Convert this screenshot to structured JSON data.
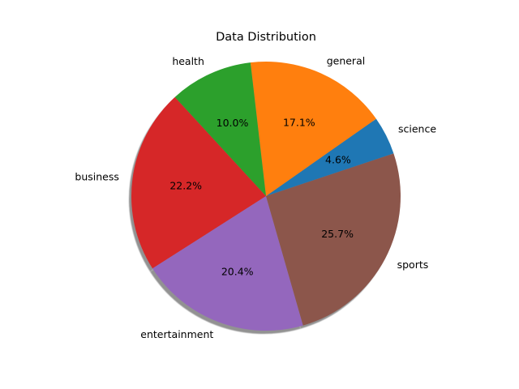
{
  "chart_data": {
    "type": "pie",
    "title": "Data Distribution",
    "shadow": true,
    "start_angle_deg": 90,
    "direction": "counterclockwise",
    "slices": [
      {
        "label": "science",
        "value": 4.6,
        "value_label": "4.6%",
        "color": "#1f77b4"
      },
      {
        "label": "general",
        "value": 17.1,
        "value_label": "17.1%",
        "color": "#ff7f0e"
      },
      {
        "label": "health",
        "value": 10.0,
        "value_label": "10.0%",
        "color": "#2ca02c"
      },
      {
        "label": "business",
        "value": 22.2,
        "value_label": "22.2%",
        "color": "#d62728"
      },
      {
        "label": "entertainment",
        "value": 20.4,
        "value_label": "20.4%",
        "color": "#9467bd"
      },
      {
        "label": "sports",
        "value": 25.7,
        "value_label": "25.7%",
        "color": "#8c564b"
      }
    ]
  }
}
